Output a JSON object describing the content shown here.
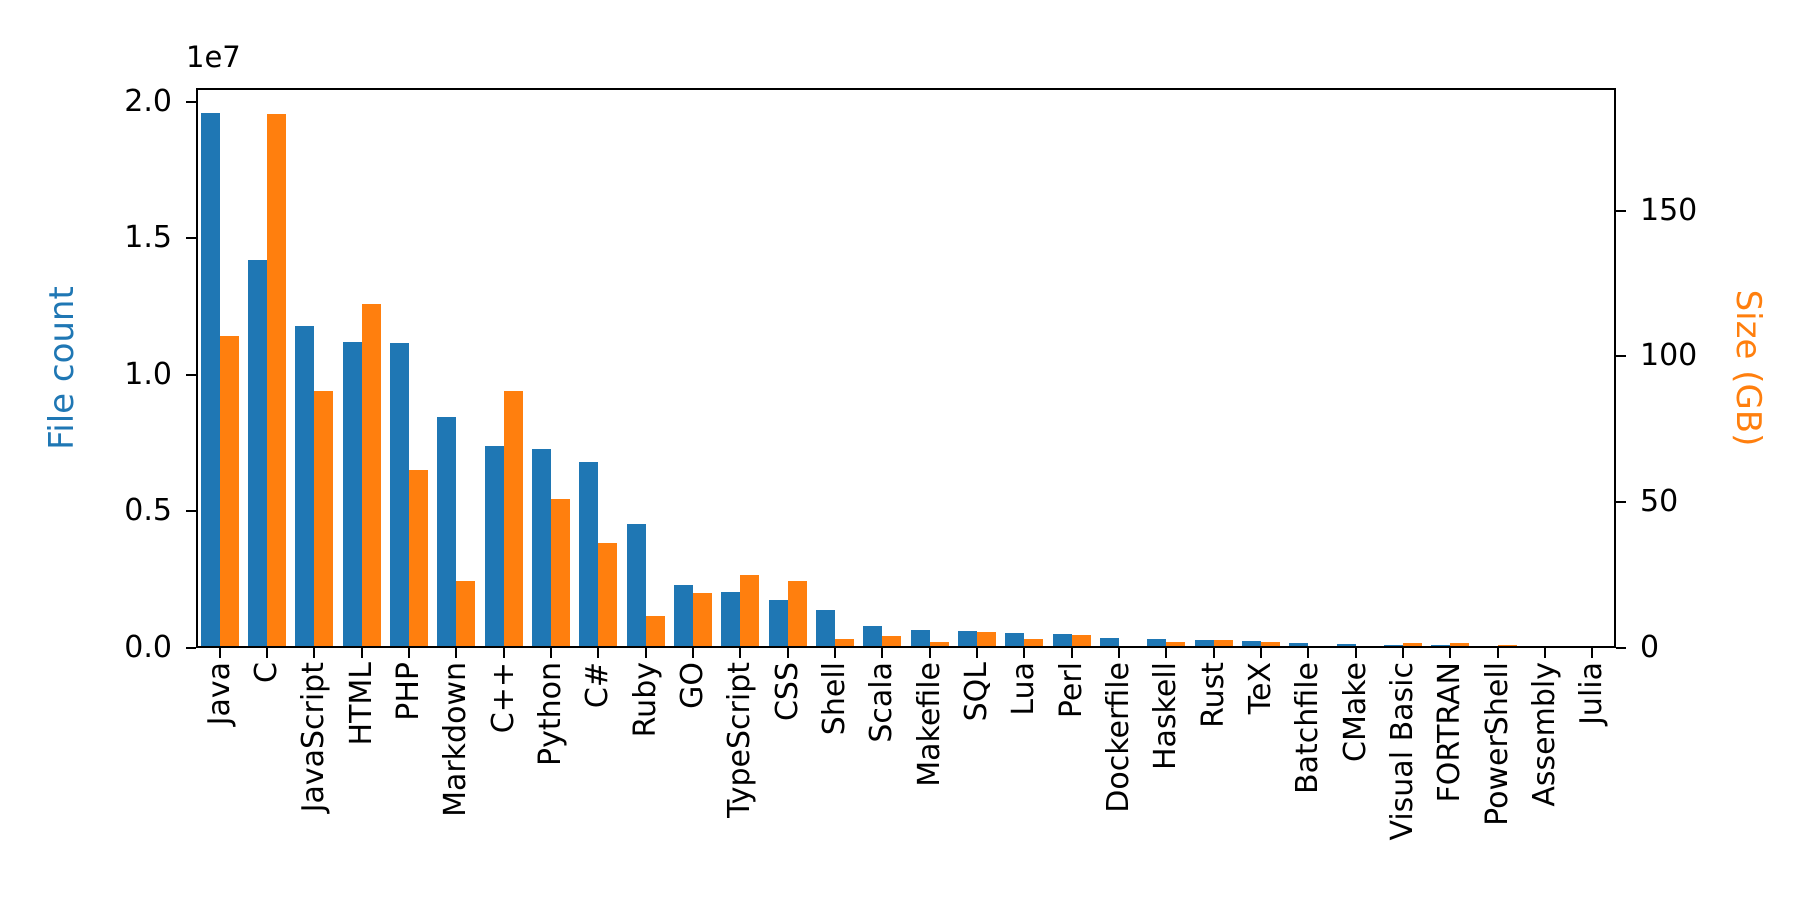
{
  "figure": {
    "background": "#ffffff"
  },
  "chart_data": {
    "type": "bar",
    "title": "",
    "grid": false,
    "legend": null,
    "categories": [
      "Java",
      "C",
      "JavaScript",
      "HTML",
      "PHP",
      "Markdown",
      "C++",
      "Python",
      "C#",
      "Ruby",
      "GO",
      "TypeScript",
      "CSS",
      "Shell",
      "Scala",
      "Makefile",
      "SQL",
      "Lua",
      "Perl",
      "Dockerfile",
      "Haskell",
      "Rust",
      "TeX",
      "Batchfile",
      "CMake",
      "Visual Basic",
      "FORTRAN",
      "PowerShell",
      "Assembly",
      "Julia"
    ],
    "series": [
      {
        "name": "File count",
        "axis": "left",
        "color": "#1f77b4",
        "values": [
          19600000,
          14200000,
          11800000,
          11200000,
          11150000,
          8450000,
          7400000,
          7300000,
          6800000,
          4550000,
          2300000,
          2050000,
          1750000,
          1400000,
          800000,
          650000,
          620000,
          550000,
          500000,
          350000,
          320000,
          300000,
          250000,
          200000,
          130000,
          110000,
          100000,
          90000,
          60000,
          50000
        ]
      },
      {
        "name": "Size (GB)",
        "axis": "right",
        "color": "#ff7f0e",
        "values": [
          107,
          183,
          88,
          118,
          61,
          23,
          88,
          51,
          36,
          11,
          19,
          25,
          23,
          3,
          4,
          2.2,
          5.5,
          3,
          4.6,
          0.6,
          2.2,
          2.6,
          2.2,
          0.4,
          0.5,
          1.8,
          1.6,
          1.2,
          0.6,
          0.3
        ]
      }
    ],
    "left_axis": {
      "label": "File count",
      "color": "#1f77b4",
      "offset_text": "1e7",
      "ticks": [
        "0.0",
        "0.5",
        "1.0",
        "1.5",
        "2.0"
      ],
      "tick_values": [
        0,
        5000000,
        10000000,
        15000000,
        20000000
      ],
      "max": 20500000
    },
    "right_axis": {
      "label": "Size (GB)",
      "color": "#ff7f0e",
      "ticks": [
        "0",
        "50",
        "100",
        "150"
      ],
      "tick_values": [
        0,
        50,
        100,
        150
      ],
      "max": 192
    }
  }
}
